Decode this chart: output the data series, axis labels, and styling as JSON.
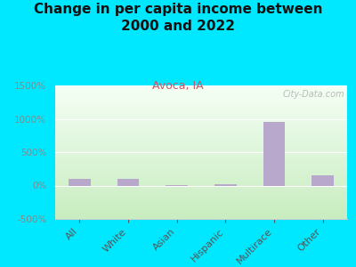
{
  "title": "Change in per capita income between\n2000 and 2022",
  "subtitle": "Avoca, IA",
  "categories": [
    "All",
    "White",
    "Asian",
    "Hispanic",
    "Multirace",
    "Other"
  ],
  "values": [
    100,
    105,
    5,
    25,
    950,
    160
  ],
  "bar_color": "#b8a8cc",
  "background_outer": "#00e8ff",
  "ylim": [
    -500,
    1500
  ],
  "yticks": [
    -500,
    0,
    500,
    1000,
    1500
  ],
  "ytick_labels": [
    "-500%",
    "0%",
    "500%",
    "1000%",
    "1500%"
  ],
  "title_fontsize": 11,
  "subtitle_fontsize": 9,
  "subtitle_color": "#cc5566",
  "ytick_color": "#888888",
  "xtick_color": "#555555",
  "watermark": "City-Data.com"
}
